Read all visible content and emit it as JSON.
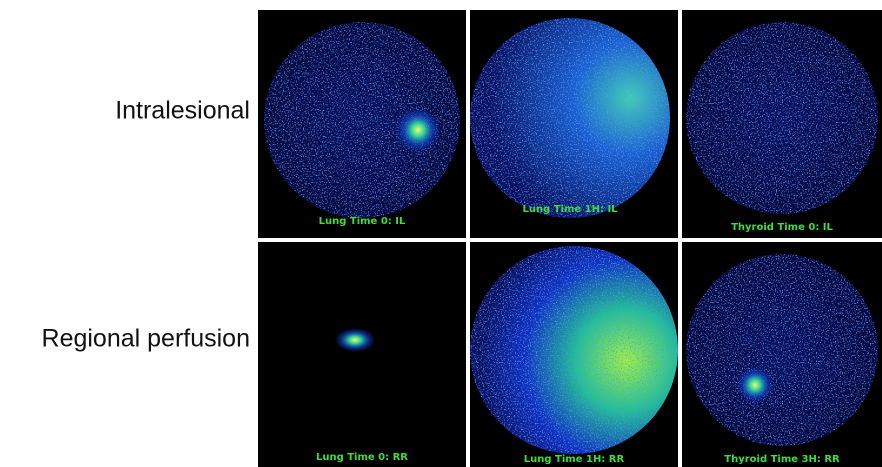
{
  "row_labels": [
    "Intralesional",
    "Regional perfusion"
  ],
  "panels": [
    {
      "caption": "Lung Time 0: IL"
    },
    {
      "caption": "Lung Time 1H: IL"
    },
    {
      "caption": "Thyroid Time 0: IL"
    },
    {
      "caption": "Lung Time 0: RR"
    },
    {
      "caption": "Lung Time 1H: RR"
    },
    {
      "caption": "Thyroid Time 3H: RR"
    }
  ]
}
